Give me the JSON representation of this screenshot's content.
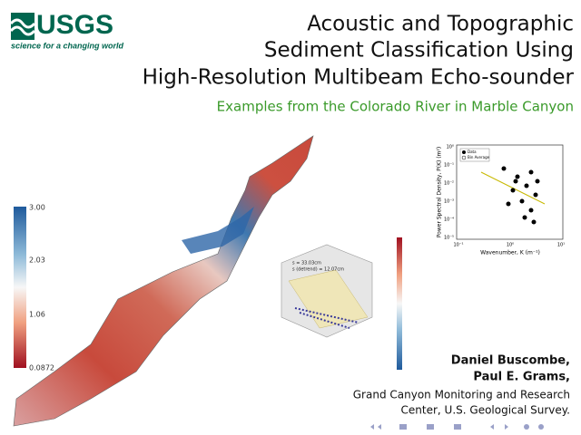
{
  "logo": {
    "name": "USGS",
    "tagline": "science for a changing world"
  },
  "title": {
    "lines": [
      "Acoustic and Topographic",
      "Sediment Classification Using",
      "High-Resolution Multibeam Echo-sounder"
    ]
  },
  "subtitle": "Examples from the Colorado River in Marble Canyon",
  "figures": {
    "colorbar": {
      "labels": [
        "3.00",
        "2.03",
        "1.06",
        "0.0872"
      ]
    },
    "surface": {
      "annotations": [
        "s = 33.03cm",
        "s (detrend) = 12.07cm"
      ]
    },
    "spectrum": {
      "y_label": "Power Spectral Density, P(K) (m²)",
      "x_label": "Wavenumber, K (m⁻¹)",
      "legend": [
        "Data",
        "Bin Average"
      ],
      "y_ticks": [
        "10⁰",
        "10⁻¹",
        "10⁻²",
        "10⁻³",
        "10⁻⁴",
        "10⁻⁵"
      ],
      "x_ticks": [
        "10⁻¹",
        "10⁰",
        "10¹"
      ]
    }
  },
  "authors": [
    "Daniel Buscombe,",
    "Paul E. Grams,"
  ],
  "affiliation": [
    "Grand Canyon Monitoring and Research",
    "Center, U.S. Geological Survey."
  ]
}
